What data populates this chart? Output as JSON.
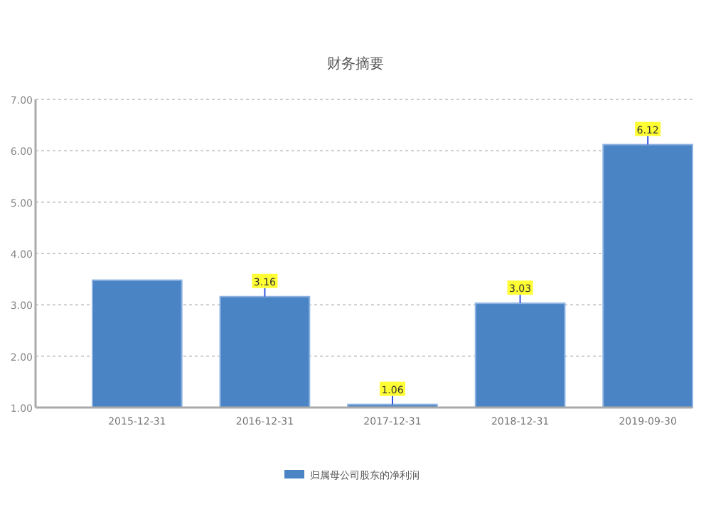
{
  "chart_data": {
    "type": "bar",
    "title": "财务摘要",
    "categories": [
      "2015-12-31",
      "2016-12-31",
      "2017-12-31",
      "2018-12-31",
      "2019-09-30"
    ],
    "series": [
      {
        "name": "归属母公司股东的净利润",
        "color": "#4a84c4",
        "values": [
          3.48,
          3.16,
          1.06,
          3.03,
          6.12
        ],
        "value_labels": [
          null,
          "3.16",
          "1.06",
          "3.03",
          "6.12"
        ]
      }
    ],
    "ylim": [
      1,
      7
    ],
    "yticks": [
      {
        "value": 1,
        "label": "1.00"
      },
      {
        "value": 2,
        "label": "2.00"
      },
      {
        "value": 3,
        "label": "3.00"
      },
      {
        "value": 4,
        "label": "4.00"
      },
      {
        "value": 5,
        "label": "5.00"
      },
      {
        "value": 6,
        "label": "6.00"
      },
      {
        "value": 7,
        "label": "7.00"
      }
    ],
    "grid": "y",
    "legend": "bottom"
  }
}
